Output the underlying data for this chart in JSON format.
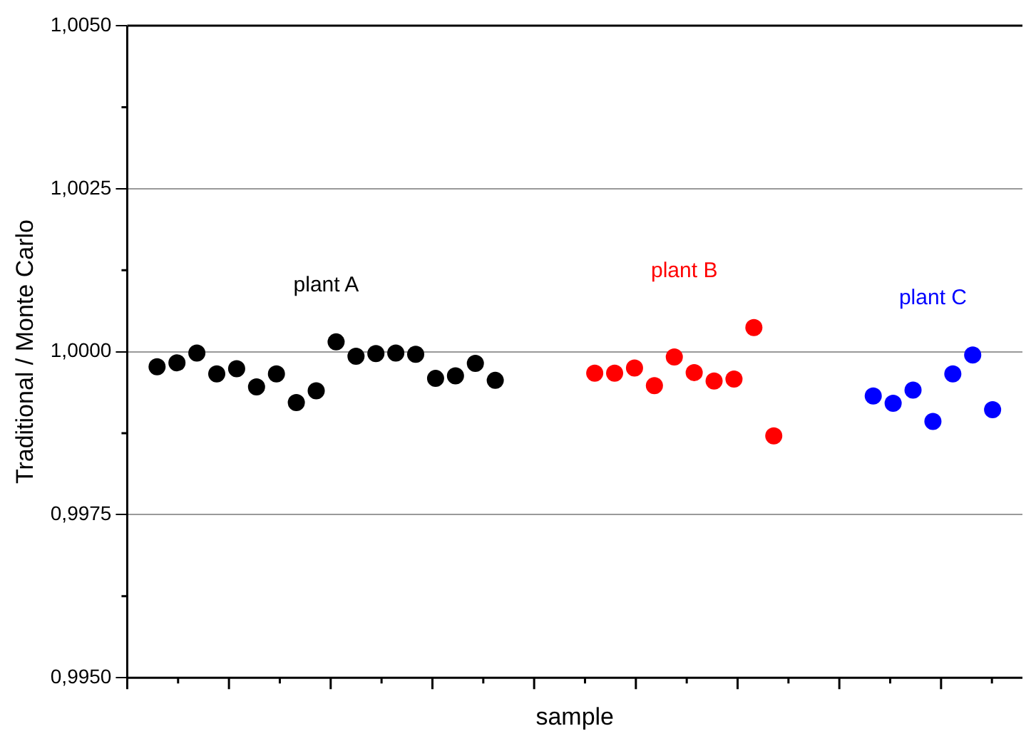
{
  "chart_data": {
    "type": "scatter",
    "xlabel": "sample",
    "ylabel": "Traditional / Monte Carlo",
    "categories": [
      null,
      null,
      null,
      null,
      null,
      null,
      null,
      null,
      null,
      null,
      null,
      null,
      null,
      null,
      null,
      null,
      null,
      null,
      null,
      null,
      null,
      null,
      null,
      null,
      null,
      null,
      null,
      null,
      null,
      null,
      null,
      null,
      null,
      null,
      null,
      null,
      null,
      null,
      null,
      null,
      null,
      null,
      null,
      null,
      null
    ],
    "series": [
      {
        "name": "plant A",
        "color": "#000000",
        "values": [
          null,
          0.99977,
          0.99983,
          0.99998,
          0.99966,
          0.99974,
          0.99946,
          0.99966,
          0.99922,
          0.9994,
          1.00015,
          0.99993,
          0.99997,
          0.99998,
          0.99996,
          0.99959,
          0.99963,
          0.99982,
          0.99956,
          null,
          null,
          null,
          null,
          null,
          null,
          null,
          null,
          null,
          null,
          null,
          null,
          null,
          null,
          null,
          null,
          null,
          null,
          null,
          null,
          null,
          null,
          null,
          null,
          null,
          null
        ]
      },
      {
        "name": "plant B",
        "color": "#ff0000",
        "values": [
          null,
          null,
          null,
          null,
          null,
          null,
          null,
          null,
          null,
          null,
          null,
          null,
          null,
          null,
          null,
          null,
          null,
          null,
          null,
          null,
          null,
          null,
          null,
          0.99967,
          0.99967,
          0.99975,
          0.99948,
          0.99992,
          0.99968,
          0.99955,
          0.99958,
          1.00037,
          0.99871,
          null,
          null,
          null,
          null,
          null,
          null,
          null,
          null,
          null,
          null,
          null,
          null
        ]
      },
      {
        "name": "plant C",
        "color": "#0000ff",
        "values": [
          null,
          null,
          null,
          null,
          null,
          null,
          null,
          null,
          null,
          null,
          null,
          null,
          null,
          null,
          null,
          null,
          null,
          null,
          null,
          null,
          null,
          null,
          null,
          null,
          null,
          null,
          null,
          null,
          null,
          null,
          null,
          null,
          null,
          null,
          null,
          null,
          null,
          0.99932,
          0.99921,
          0.99941,
          0.99893,
          0.99966,
          0.99995,
          0.99911,
          null
        ]
      }
    ],
    "ylim": [
      0.995,
      1.005
    ],
    "yticks": [
      {
        "value": 0.995,
        "label": "0,9950"
      },
      {
        "value": 0.9975,
        "label": "0,9975"
      },
      {
        "value": 1,
        "label": "1,0000"
      },
      {
        "value": 1.0025,
        "label": "1,0025"
      },
      {
        "value": 1.005,
        "label": "1,0050"
      }
    ],
    "grid": "y",
    "legend": false,
    "marker": "circle",
    "tick_labels": "y"
  }
}
